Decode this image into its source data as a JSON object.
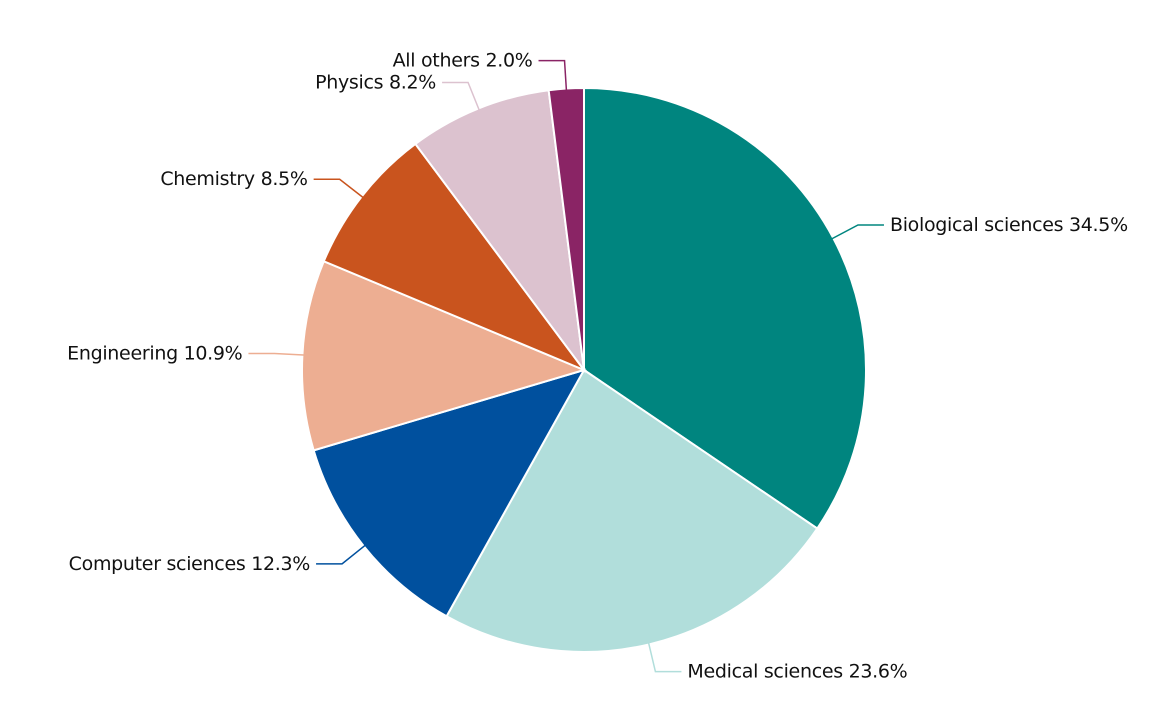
{
  "chart_data": {
    "type": "pie",
    "categories": [
      "Biological sciences",
      "Medical sciences",
      "Computer sciences",
      "Engineering",
      "Chemistry",
      "Physics",
      "All others"
    ],
    "values": [
      34.5,
      23.6,
      12.3,
      10.9,
      8.5,
      8.2,
      2.0
    ],
    "value_labels": [
      "34.5%",
      "23.6%",
      "12.3%",
      "10.9%",
      "8.5%",
      "8.2%",
      "2.0%"
    ],
    "colors": [
      "#00857f",
      "#b1dedb",
      "#00509e",
      "#edae92",
      "#c9541e",
      "#dcc2cf",
      "#8a2465"
    ]
  }
}
